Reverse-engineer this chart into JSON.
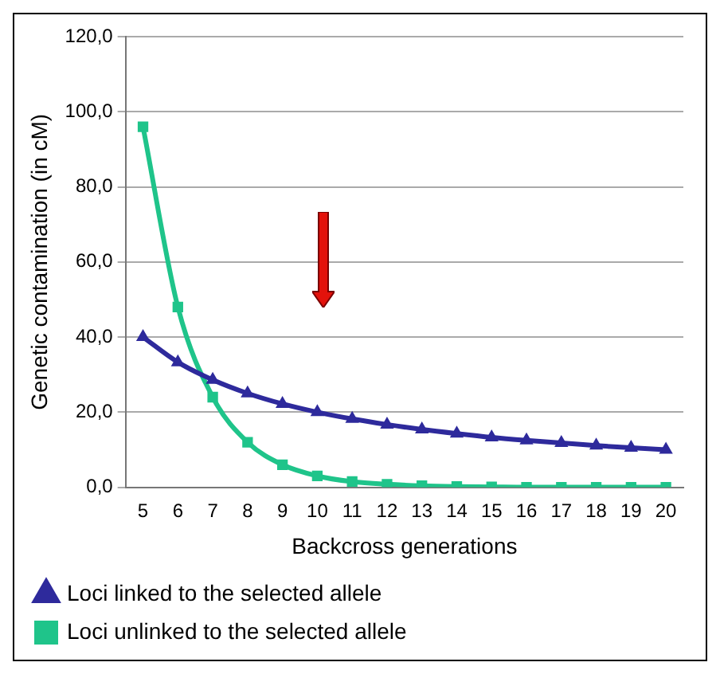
{
  "chart_data": {
    "type": "line",
    "xlabel": "Backcross generations",
    "ylabel": "Genetic contamination (in cM)",
    "categories": [
      "5",
      "6",
      "7",
      "8",
      "9",
      "10",
      "11",
      "12",
      "13",
      "14",
      "15",
      "16",
      "17",
      "18",
      "19",
      "20"
    ],
    "series": [
      {
        "name": "Loci linked to the selected allele",
        "color": "#2e2a9c",
        "marker": "triangle",
        "values": [
          40,
          33.3,
          28.6,
          25,
          22.2,
          20,
          18.2,
          16.7,
          15.4,
          14.3,
          13.3,
          12.5,
          11.8,
          11.1,
          10.5,
          10
        ]
      },
      {
        "name": "Loci unlinked to the selected allele",
        "color": "#1fc48a",
        "marker": "square",
        "values": [
          96,
          48,
          24,
          12,
          6,
          3,
          1.5,
          0.8,
          0.4,
          0.2,
          0.1,
          0,
          0,
          0,
          0,
          0
        ]
      }
    ],
    "ylim": [
      0,
      120
    ],
    "yticks": [
      {
        "value": 0,
        "label": "0,0"
      },
      {
        "value": 20,
        "label": "20,0"
      },
      {
        "value": 40,
        "label": "40,0"
      },
      {
        "value": 60,
        "label": "60,0"
      },
      {
        "value": 80,
        "label": "80,0"
      },
      {
        "value": 100,
        "label": "100,0"
      },
      {
        "value": 120,
        "label": "120,0"
      }
    ],
    "grid": "y",
    "legend": "bottom left",
    "line_style": "solid"
  }
}
